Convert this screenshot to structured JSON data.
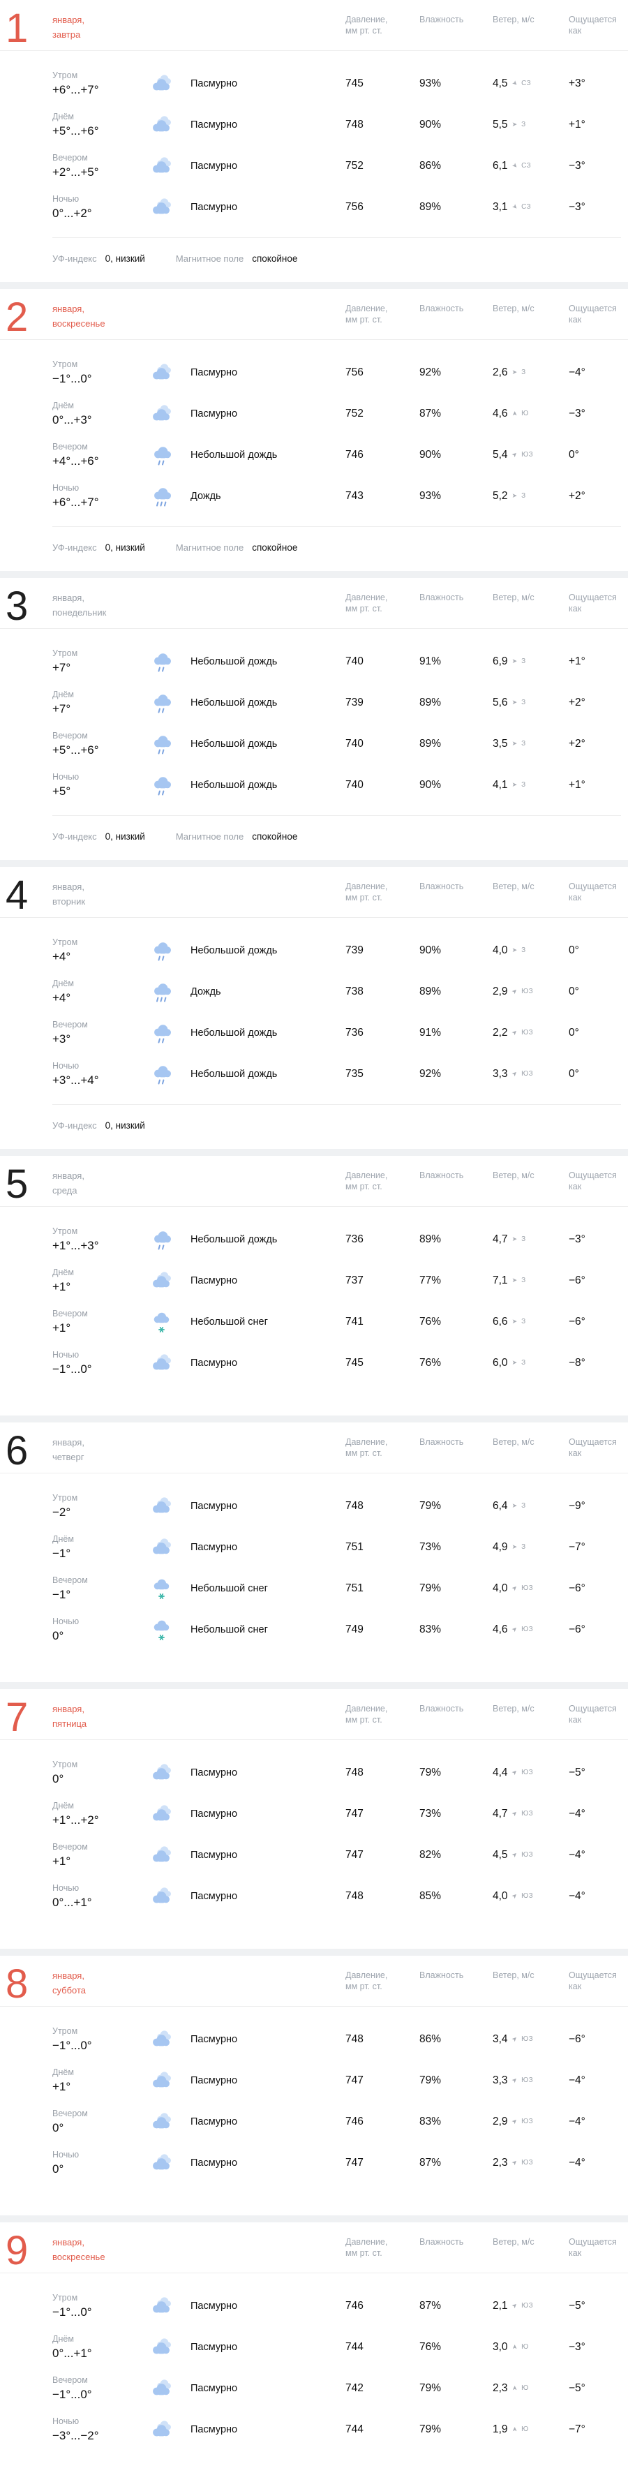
{
  "colors": {
    "accent_red": "#e25c4c",
    "cloud_front": "#a6c6f1",
    "cloud_back": "#cfe1f8",
    "rain_drop": "#7da4e0",
    "snowflake_teal": "#38b5a8",
    "text_gray": "#9aa0a8",
    "text_black": "#111111"
  },
  "table_header": {
    "pressure_line1": "Давление,",
    "pressure_line2": "мм рт. ст.",
    "humidity": "Влажность",
    "wind": "Ветер, м/с",
    "feels": "Ощущается как"
  },
  "footer_labels": {
    "uv": "УФ-индекс",
    "magnetic": "Магнитное поле"
  },
  "days": [
    {
      "day": "1",
      "date_line1": "января,",
      "date_line2": "завтра",
      "accent": true,
      "uv": "0, низкий",
      "magnetic": "спокойное",
      "rows": [
        {
          "time": "Утром",
          "temp": "+6°...+7°",
          "icon": "overcast",
          "condition": "Пасмурно",
          "pressure": "745",
          "humidity": "93%",
          "wind": "4,5",
          "dir": "СЗ",
          "feels": "+3°"
        },
        {
          "time": "Днём",
          "temp": "+5°...+6°",
          "icon": "overcast",
          "condition": "Пасмурно",
          "pressure": "748",
          "humidity": "90%",
          "wind": "5,5",
          "dir": "З",
          "feels": "+1°"
        },
        {
          "time": "Вечером",
          "temp": "+2°...+5°",
          "icon": "overcast",
          "condition": "Пасмурно",
          "pressure": "752",
          "humidity": "86%",
          "wind": "6,1",
          "dir": "СЗ",
          "feels": "−3°"
        },
        {
          "time": "Ночью",
          "temp": "0°...+2°",
          "icon": "overcast",
          "condition": "Пасмурно",
          "pressure": "756",
          "humidity": "89%",
          "wind": "3,1",
          "dir": "СЗ",
          "feels": "−3°"
        }
      ]
    },
    {
      "day": "2",
      "date_line1": "января,",
      "date_line2": "воскресенье",
      "accent": true,
      "uv": "0, низкий",
      "magnetic": "спокойное",
      "rows": [
        {
          "time": "Утром",
          "temp": "−1°...0°",
          "icon": "overcast",
          "condition": "Пасмурно",
          "pressure": "756",
          "humidity": "92%",
          "wind": "2,6",
          "dir": "З",
          "feels": "−4°"
        },
        {
          "time": "Днём",
          "temp": "0°...+3°",
          "icon": "overcast",
          "condition": "Пасмурно",
          "pressure": "752",
          "humidity": "87%",
          "wind": "4,6",
          "dir": "Ю",
          "feels": "−3°"
        },
        {
          "time": "Вечером",
          "temp": "+4°...+6°",
          "icon": "light_rain",
          "condition": "Небольшой дождь",
          "pressure": "746",
          "humidity": "90%",
          "wind": "5,4",
          "dir": "ЮЗ",
          "feels": "0°"
        },
        {
          "time": "Ночью",
          "temp": "+6°...+7°",
          "icon": "rain",
          "condition": "Дождь",
          "pressure": "743",
          "humidity": "93%",
          "wind": "5,2",
          "dir": "З",
          "feels": "+2°"
        }
      ]
    },
    {
      "day": "3",
      "date_line1": "января,",
      "date_line2": "понедельник",
      "accent": false,
      "uv": "0, низкий",
      "magnetic": "спокойное",
      "rows": [
        {
          "time": "Утром",
          "temp": "+7°",
          "icon": "light_rain",
          "condition": "Небольшой дождь",
          "pressure": "740",
          "humidity": "91%",
          "wind": "6,9",
          "dir": "З",
          "feels": "+1°"
        },
        {
          "time": "Днём",
          "temp": "+7°",
          "icon": "light_rain",
          "condition": "Небольшой дождь",
          "pressure": "739",
          "humidity": "89%",
          "wind": "5,6",
          "dir": "З",
          "feels": "+2°"
        },
        {
          "time": "Вечером",
          "temp": "+5°...+6°",
          "icon": "light_rain",
          "condition": "Небольшой дождь",
          "pressure": "740",
          "humidity": "89%",
          "wind": "3,5",
          "dir": "З",
          "feels": "+2°"
        },
        {
          "time": "Ночью",
          "temp": "+5°",
          "icon": "light_rain",
          "condition": "Небольшой дождь",
          "pressure": "740",
          "humidity": "90%",
          "wind": "4,1",
          "dir": "З",
          "feels": "+1°"
        }
      ]
    },
    {
      "day": "4",
      "date_line1": "января,",
      "date_line2": "вторник",
      "accent": false,
      "uv": "0, низкий",
      "magnetic": null,
      "rows": [
        {
          "time": "Утром",
          "temp": "+4°",
          "icon": "light_rain",
          "condition": "Небольшой дождь",
          "pressure": "739",
          "humidity": "90%",
          "wind": "4,0",
          "dir": "З",
          "feels": "0°"
        },
        {
          "time": "Днём",
          "temp": "+4°",
          "icon": "rain",
          "condition": "Дождь",
          "pressure": "738",
          "humidity": "89%",
          "wind": "2,9",
          "dir": "ЮЗ",
          "feels": "0°"
        },
        {
          "time": "Вечером",
          "temp": "+3°",
          "icon": "light_rain",
          "condition": "Небольшой дождь",
          "pressure": "736",
          "humidity": "91%",
          "wind": "2,2",
          "dir": "ЮЗ",
          "feels": "0°"
        },
        {
          "time": "Ночью",
          "temp": "+3°...+4°",
          "icon": "light_rain",
          "condition": "Небольшой дождь",
          "pressure": "735",
          "humidity": "92%",
          "wind": "3,3",
          "dir": "ЮЗ",
          "feels": "0°"
        }
      ]
    },
    {
      "day": "5",
      "date_line1": "января,",
      "date_line2": "среда",
      "accent": false,
      "uv": null,
      "magnetic": null,
      "rows": [
        {
          "time": "Утром",
          "temp": "+1°...+3°",
          "icon": "light_rain",
          "condition": "Небольшой дождь",
          "pressure": "736",
          "humidity": "89%",
          "wind": "4,7",
          "dir": "З",
          "feels": "−3°"
        },
        {
          "time": "Днём",
          "temp": "+1°",
          "icon": "overcast",
          "condition": "Пасмурно",
          "pressure": "737",
          "humidity": "77%",
          "wind": "7,1",
          "dir": "З",
          "feels": "−6°"
        },
        {
          "time": "Вечером",
          "temp": "+1°",
          "icon": "light_snow",
          "condition": "Небольшой снег",
          "pressure": "741",
          "humidity": "76%",
          "wind": "6,6",
          "dir": "З",
          "feels": "−6°"
        },
        {
          "time": "Ночью",
          "temp": "−1°...0°",
          "icon": "overcast",
          "condition": "Пасмурно",
          "pressure": "745",
          "humidity": "76%",
          "wind": "6,0",
          "dir": "З",
          "feels": "−8°"
        }
      ]
    },
    {
      "day": "6",
      "date_line1": "января,",
      "date_line2": "четверг",
      "accent": false,
      "uv": null,
      "magnetic": null,
      "rows": [
        {
          "time": "Утром",
          "temp": "−2°",
          "icon": "overcast",
          "condition": "Пасмурно",
          "pressure": "748",
          "humidity": "79%",
          "wind": "6,4",
          "dir": "З",
          "feels": "−9°"
        },
        {
          "time": "Днём",
          "temp": "−1°",
          "icon": "overcast",
          "condition": "Пасмурно",
          "pressure": "751",
          "humidity": "73%",
          "wind": "4,9",
          "dir": "З",
          "feels": "−7°"
        },
        {
          "time": "Вечером",
          "temp": "−1°",
          "icon": "light_snow",
          "condition": "Небольшой снег",
          "pressure": "751",
          "humidity": "79%",
          "wind": "4,0",
          "dir": "ЮЗ",
          "feels": "−6°"
        },
        {
          "time": "Ночью",
          "temp": "0°",
          "icon": "light_snow",
          "condition": "Небольшой снег",
          "pressure": "749",
          "humidity": "83%",
          "wind": "4,6",
          "dir": "ЮЗ",
          "feels": "−6°"
        }
      ]
    },
    {
      "day": "7",
      "date_line1": "января,",
      "date_line2": "пятница",
      "accent": true,
      "uv": null,
      "magnetic": null,
      "rows": [
        {
          "time": "Утром",
          "temp": "0°",
          "icon": "overcast",
          "condition": "Пасмурно",
          "pressure": "748",
          "humidity": "79%",
          "wind": "4,4",
          "dir": "ЮЗ",
          "feels": "−5°"
        },
        {
          "time": "Днём",
          "temp": "+1°...+2°",
          "icon": "overcast",
          "condition": "Пасмурно",
          "pressure": "747",
          "humidity": "73%",
          "wind": "4,7",
          "dir": "ЮЗ",
          "feels": "−4°"
        },
        {
          "time": "Вечером",
          "temp": "+1°",
          "icon": "overcast",
          "condition": "Пасмурно",
          "pressure": "747",
          "humidity": "82%",
          "wind": "4,5",
          "dir": "ЮЗ",
          "feels": "−4°"
        },
        {
          "time": "Ночью",
          "temp": "0°...+1°",
          "icon": "overcast",
          "condition": "Пасмурно",
          "pressure": "748",
          "humidity": "85%",
          "wind": "4,0",
          "dir": "ЮЗ",
          "feels": "−4°"
        }
      ]
    },
    {
      "day": "8",
      "date_line1": "января,",
      "date_line2": "суббота",
      "accent": true,
      "uv": null,
      "magnetic": null,
      "rows": [
        {
          "time": "Утром",
          "temp": "−1°...0°",
          "icon": "overcast",
          "condition": "Пасмурно",
          "pressure": "748",
          "humidity": "86%",
          "wind": "3,4",
          "dir": "ЮЗ",
          "feels": "−6°"
        },
        {
          "time": "Днём",
          "temp": "+1°",
          "icon": "overcast",
          "condition": "Пасмурно",
          "pressure": "747",
          "humidity": "79%",
          "wind": "3,3",
          "dir": "ЮЗ",
          "feels": "−4°"
        },
        {
          "time": "Вечером",
          "temp": "0°",
          "icon": "overcast",
          "condition": "Пасмурно",
          "pressure": "746",
          "humidity": "83%",
          "wind": "2,9",
          "dir": "ЮЗ",
          "feels": "−4°"
        },
        {
          "time": "Ночью",
          "temp": "0°",
          "icon": "overcast",
          "condition": "Пасмурно",
          "pressure": "747",
          "humidity": "87%",
          "wind": "2,3",
          "dir": "ЮЗ",
          "feels": "−4°"
        }
      ]
    },
    {
      "day": "9",
      "date_line1": "января,",
      "date_line2": "воскресенье",
      "accent": true,
      "uv": null,
      "magnetic": null,
      "rows": [
        {
          "time": "Утром",
          "temp": "−1°...0°",
          "icon": "overcast",
          "condition": "Пасмурно",
          "pressure": "746",
          "humidity": "87%",
          "wind": "2,1",
          "dir": "ЮЗ",
          "feels": "−5°"
        },
        {
          "time": "Днём",
          "temp": "0°...+1°",
          "icon": "overcast",
          "condition": "Пасмурно",
          "pressure": "744",
          "humidity": "76%",
          "wind": "3,0",
          "dir": "Ю",
          "feels": "−3°"
        },
        {
          "time": "Вечером",
          "temp": "−1°...0°",
          "icon": "overcast",
          "condition": "Пасмурно",
          "pressure": "742",
          "humidity": "79%",
          "wind": "2,3",
          "dir": "Ю",
          "feels": "−5°"
        },
        {
          "time": "Ночью",
          "temp": "−3°...−2°",
          "icon": "overcast",
          "condition": "Пасмурно",
          "pressure": "744",
          "humidity": "79%",
          "wind": "1,9",
          "dir": "Ю",
          "feels": "−7°"
        }
      ]
    }
  ]
}
